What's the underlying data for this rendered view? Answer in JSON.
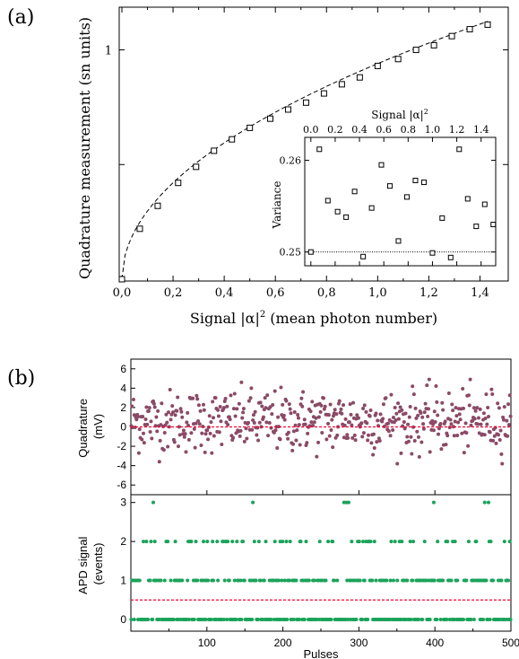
{
  "chart_data": [
    {
      "panel": "(a)",
      "type": "scatter",
      "xlabel": "Signal |α|² (mean photon number)",
      "ylabel": "Quadrature measurement (sn units)",
      "xlim": [
        0.0,
        1.5
      ],
      "ylim": [
        0.0,
        1.1
      ],
      "xticks": [
        "0,0",
        "0,2",
        "0,4",
        "0,6",
        "0,8",
        "1,0",
        "1,2",
        "1,4"
      ],
      "yticks": [
        "1"
      ],
      "series": [
        {
          "marker": "open-square",
          "x": [
            0.0,
            0.07,
            0.14,
            0.22,
            0.29,
            0.36,
            0.43,
            0.5,
            0.58,
            0.65,
            0.72,
            0.79,
            0.86,
            0.93,
            1.0,
            1.08,
            1.15,
            1.22,
            1.29,
            1.36,
            1.43
          ],
          "y": [
            0.0,
            0.22,
            0.32,
            0.42,
            0.49,
            0.56,
            0.61,
            0.66,
            0.7,
            0.74,
            0.77,
            0.81,
            0.85,
            0.88,
            0.93,
            0.96,
            1.0,
            1.02,
            1.06,
            1.09,
            1.11
          ]
        },
        {
          "style": "dashed-line",
          "fit": "sqrt",
          "y_at_1": 0.94
        }
      ],
      "inset": {
        "type": "scatter",
        "xlabel": "Signal |α|²",
        "ylabel": "Variance",
        "xlim": [
          -0.05,
          1.52
        ],
        "ylim": [
          0.2485,
          0.2625
        ],
        "xticks": [
          "0.0",
          "0.2",
          "0.4",
          "0.6",
          "0.8",
          "1.0",
          "1.2",
          "1.4"
        ],
        "yticks": [
          "0.25",
          "0.26"
        ],
        "reference_line": 0.25,
        "x": [
          0.0,
          0.07,
          0.14,
          0.22,
          0.29,
          0.36,
          0.43,
          0.5,
          0.58,
          0.65,
          0.72,
          0.79,
          0.86,
          0.93,
          1.0,
          1.08,
          1.15,
          1.22,
          1.29,
          1.36,
          1.43,
          1.5
        ],
        "y": [
          0.25,
          0.2612,
          0.2556,
          0.2544,
          0.2538,
          0.2566,
          0.2495,
          0.2548,
          0.2595,
          0.2572,
          0.2512,
          0.256,
          0.2578,
          0.2576,
          0.2499,
          0.2537,
          0.2494,
          0.2612,
          0.2558,
          0.2528,
          0.2552,
          0.253
        ]
      }
    },
    {
      "panel": "(b)",
      "type": "scatter",
      "xlabel": "Pulses",
      "xlim": [
        0,
        500
      ],
      "xticks": [
        "100",
        "200",
        "300",
        "400",
        "500"
      ],
      "top": {
        "ylabel": "Quadrature (mV)",
        "ylim": [
          -7,
          7
        ],
        "yticks": [
          "6",
          "4",
          "2",
          "0",
          "-2",
          "-4",
          "-6"
        ],
        "reference_line": 0,
        "points": 500,
        "mean": 0.6,
        "spread": 1.6,
        "color": "#8a4a66",
        "line_color": "#ff0033"
      },
      "bottom": {
        "ylabel": "APD signal (events)",
        "ylim": [
          -0.3,
          3.2
        ],
        "yticks": [
          "0",
          "1",
          "2",
          "3"
        ],
        "threshold_line": 0.5,
        "points": 500,
        "color": "#1aa35a",
        "line_color": "#ff0033",
        "events_3_at": [
          29,
          160,
          280,
          283,
          286,
          398,
          465,
          470
        ],
        "levels_fraction": {
          "0": 0.5,
          "1": 0.35,
          "2": 0.13,
          "3": 0.02
        }
      }
    }
  ],
  "panels": {
    "a_label": "(a)",
    "b_label": "(b)",
    "a_xlabel": "Signal |α|² (mean photon number)",
    "a_ylabel": "Quadrature measurement (sn units)",
    "inset_xlabel": "Signal |α|²",
    "inset_ylabel": "Variance",
    "b_xlabel": "Pulses",
    "b_top_ylabel_1": "Quadrature",
    "b_top_ylabel_2": "(mV)",
    "b_bottom_ylabel_1": "APD signal",
    "b_bottom_ylabel_2": "(events)"
  }
}
